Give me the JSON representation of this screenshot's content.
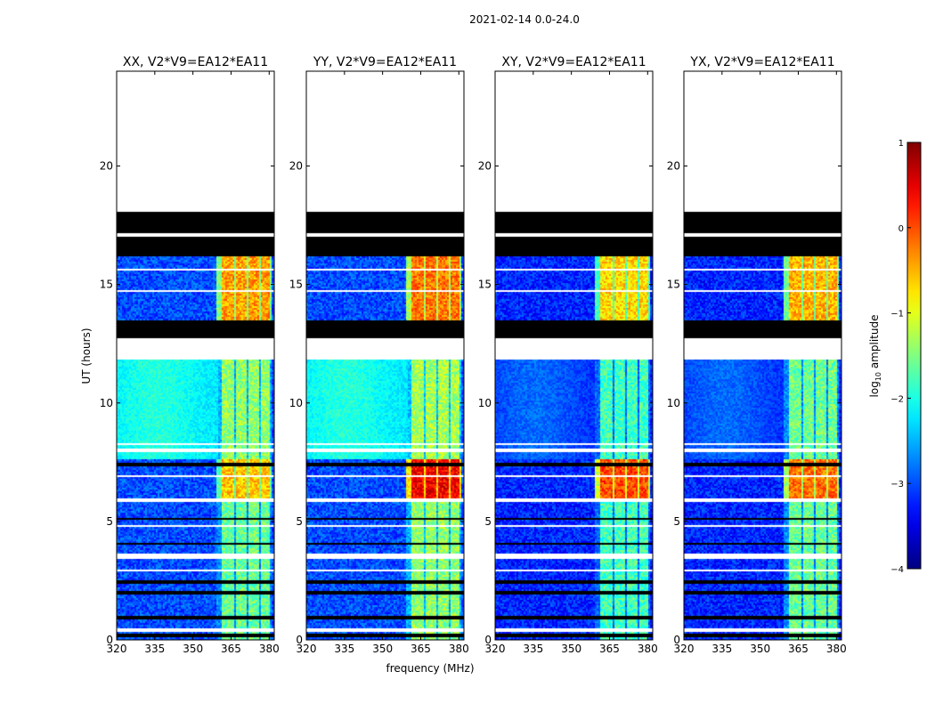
{
  "figure": {
    "suptitle": "2021-02-14 0.0-24.0",
    "xlabel": "frequency (MHz)",
    "ylabel": "UT (hours)",
    "colorbar": {
      "label": "log10 amplitude",
      "label_main": "log",
      "label_sub": "10",
      "label_tail": " amplitude",
      "range": [
        -4,
        1
      ],
      "ticks": [
        -4,
        -3,
        -2,
        -1,
        0,
        1
      ],
      "tick_labels": [
        "−4",
        "−3",
        "−2",
        "−1",
        "0",
        "1"
      ],
      "colormap": "jet"
    }
  },
  "chart_data": [
    {
      "type": "heatmap",
      "title": "XX, V2*V9=EA12*EA11",
      "x_range_mhz": [
        320,
        382
      ],
      "y_range_hours": [
        0,
        24
      ],
      "xticks": [
        320,
        335,
        350,
        365,
        380
      ],
      "yticks": [
        0,
        5,
        10,
        15,
        20
      ],
      "baseline": -3.0,
      "blue_mid_level": -2.3,
      "rfi_channels_mhz": [
        [
          361.5,
          366.5
        ],
        [
          367,
          371
        ],
        [
          372,
          376
        ],
        [
          377,
          380.5
        ]
      ],
      "segments": [
        {
          "from": 0.0,
          "to": 5.8,
          "level": -1.6
        },
        {
          "from": 5.9,
          "to": 7.6,
          "level": -0.6
        },
        {
          "from": 7.6,
          "to": 11.8,
          "level": -1.4
        },
        {
          "from": 13.5,
          "to": 16.2,
          "level": -0.4
        }
      ]
    },
    {
      "type": "heatmap",
      "title": "YY, V2*V9=EA12*EA11",
      "x_range_mhz": [
        320,
        382
      ],
      "y_range_hours": [
        0,
        24
      ],
      "xticks": [
        320,
        335,
        350,
        365,
        380
      ],
      "yticks": [
        0,
        5,
        10,
        15,
        20
      ],
      "baseline": -3.0,
      "blue_mid_level": -2.3,
      "rfi_channels_mhz": [
        [
          361.5,
          366.5
        ],
        [
          367,
          371
        ],
        [
          372,
          376
        ],
        [
          377,
          380.5
        ]
      ],
      "segments": [
        {
          "from": 0.0,
          "to": 5.8,
          "level": -1.4
        },
        {
          "from": 5.9,
          "to": 7.6,
          "level": 0.4
        },
        {
          "from": 7.6,
          "to": 11.8,
          "level": -1.3
        },
        {
          "from": 13.5,
          "to": 16.2,
          "level": -0.2
        }
      ]
    },
    {
      "type": "heatmap",
      "title": "XY, V2*V9=EA12*EA11",
      "x_range_mhz": [
        320,
        382
      ],
      "y_range_hours": [
        0,
        24
      ],
      "xticks": [
        320,
        335,
        350,
        365,
        380
      ],
      "yticks": [
        0,
        5,
        10,
        15,
        20
      ],
      "baseline": -3.2,
      "blue_mid_level": -3.2,
      "rfi_channels_mhz": [
        [
          361.5,
          366.5
        ],
        [
          367,
          371
        ],
        [
          372,
          376
        ],
        [
          377,
          380.5
        ]
      ],
      "segments": [
        {
          "from": 0.0,
          "to": 5.8,
          "level": -1.8
        },
        {
          "from": 5.9,
          "to": 7.6,
          "level": 0.0
        },
        {
          "from": 7.6,
          "to": 11.8,
          "level": -1.8
        },
        {
          "from": 13.5,
          "to": 16.2,
          "level": -0.7
        }
      ]
    },
    {
      "type": "heatmap",
      "title": "YX, V2*V9=EA12*EA11",
      "x_range_mhz": [
        320,
        382
      ],
      "y_range_hours": [
        0,
        24
      ],
      "xticks": [
        320,
        335,
        350,
        365,
        380
      ],
      "yticks": [
        0,
        5,
        10,
        15,
        20
      ],
      "baseline": -3.2,
      "blue_mid_level": -3.2,
      "rfi_channels_mhz": [
        [
          361.5,
          366.5
        ],
        [
          367,
          371
        ],
        [
          372,
          376
        ],
        [
          377,
          380.5
        ]
      ],
      "segments": [
        {
          "from": 0.0,
          "to": 5.8,
          "level": -1.6
        },
        {
          "from": 5.9,
          "to": 7.6,
          "level": -0.2
        },
        {
          "from": 7.6,
          "to": 11.8,
          "level": -1.6
        },
        {
          "from": 13.5,
          "to": 16.2,
          "level": -0.5
        }
      ]
    }
  ],
  "flagged_blank_hours": [
    [
      0.35,
      0.5
    ],
    [
      3.45,
      3.65
    ],
    [
      5.8,
      5.95
    ],
    [
      7.95,
      8.1
    ],
    [
      11.8,
      12.7
    ],
    [
      17.0,
      17.15
    ],
    [
      18.1,
      24.0
    ]
  ],
  "flagged_black_hours": [
    [
      0.15,
      0.25
    ],
    [
      0.85,
      1.0
    ],
    [
      1.95,
      2.05
    ],
    [
      2.35,
      2.5
    ],
    [
      4.0,
      4.1
    ],
    [
      5.05,
      5.12
    ],
    [
      7.0,
      7.05
    ],
    [
      7.35,
      7.45
    ],
    [
      12.7,
      13.5
    ],
    [
      16.2,
      17.0
    ],
    [
      17.15,
      18.1
    ]
  ],
  "thin_white_hours": [
    [
      1.6,
      1.65
    ],
    [
      2.9,
      2.95
    ],
    [
      4.8,
      4.85
    ],
    [
      6.1,
      6.15
    ],
    [
      6.9,
      6.95
    ],
    [
      8.25,
      8.3
    ],
    [
      9.7,
      9.73
    ],
    [
      14.05,
      14.1
    ],
    [
      14.7,
      14.75
    ],
    [
      15.6,
      15.65
    ],
    [
      16.1,
      16.14
    ],
    [
      17.55,
      17.6
    ],
    [
      17.85,
      17.9
    ]
  ]
}
